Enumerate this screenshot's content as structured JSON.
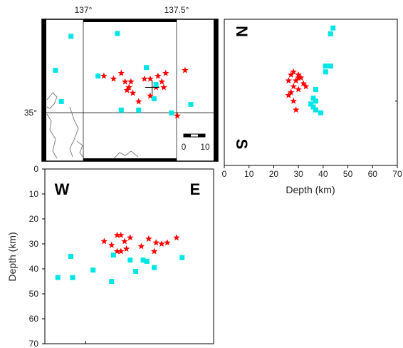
{
  "colors": {
    "event_star": "#ff0000",
    "station_square": "#00e5e5",
    "frame": "#000000",
    "coast": "#808080"
  },
  "chart_data": [
    {
      "type": "scatter",
      "panel": "map",
      "xlim": [
        136.78,
        137.69
      ],
      "ylim": [
        34.78,
        35.28
      ],
      "x_tick_labels": [
        {
          "value": 137.0,
          "label": "137°"
        },
        {
          "value": 137.5,
          "label": "137.5°"
        }
      ],
      "y_tick_labels": [
        {
          "value": 35.0,
          "label": "35°"
        }
      ],
      "scale_bar": {
        "labels": [
          "0",
          "10"
        ],
        "unit": "km"
      },
      "center_cross": {
        "lon": 137.35,
        "lat": 35.04
      },
      "series": [
        {
          "marker": "star",
          "points": [
            {
              "lon": 137.1,
              "lat": 35.08
            },
            {
              "lon": 137.15,
              "lat": 35.07
            },
            {
              "lon": 137.19,
              "lat": 35.09
            },
            {
              "lon": 137.21,
              "lat": 35.06
            },
            {
              "lon": 137.24,
              "lat": 35.06
            },
            {
              "lon": 137.23,
              "lat": 35.04
            },
            {
              "lon": 137.22,
              "lat": 35.03
            },
            {
              "lon": 137.25,
              "lat": 35.02
            },
            {
              "lon": 137.31,
              "lat": 35.07
            },
            {
              "lon": 137.34,
              "lat": 35.07
            },
            {
              "lon": 137.38,
              "lat": 35.08
            },
            {
              "lon": 137.42,
              "lat": 35.09
            },
            {
              "lon": 137.4,
              "lat": 35.06
            },
            {
              "lon": 137.37,
              "lat": 35.04
            },
            {
              "lon": 137.41,
              "lat": 35.04
            },
            {
              "lon": 137.34,
              "lat": 35.01
            },
            {
              "lon": 137.28,
              "lat": 34.99
            },
            {
              "lon": 137.52,
              "lat": 35.1
            },
            {
              "lon": 137.48,
              "lat": 34.94
            }
          ]
        },
        {
          "marker": "square",
          "points": [
            {
              "lon": 136.93,
              "lat": 35.22
            },
            {
              "lon": 137.17,
              "lat": 35.23
            },
            {
              "lon": 136.85,
              "lat": 35.1
            },
            {
              "lon": 137.07,
              "lat": 35.08
            },
            {
              "lon": 137.32,
              "lat": 35.11
            },
            {
              "lon": 137.37,
              "lat": 35.05
            },
            {
              "lon": 137.36,
              "lat": 35.0
            },
            {
              "lon": 136.88,
              "lat": 34.99
            },
            {
              "lon": 137.19,
              "lat": 34.96
            },
            {
              "lon": 137.28,
              "lat": 34.96
            },
            {
              "lon": 137.45,
              "lat": 34.95
            },
            {
              "lon": 137.55,
              "lat": 34.98
            }
          ]
        }
      ]
    },
    {
      "type": "scatter",
      "panel": "north-south cross-section",
      "xlabel": "Depth (km)",
      "xlim": [
        0,
        70
      ],
      "ylim": [
        34.78,
        35.28
      ],
      "x_ticks": [
        0,
        10,
        20,
        30,
        40,
        50,
        60,
        70
      ],
      "top_label": "N",
      "bottom_label": "S",
      "series": [
        {
          "marker": "star",
          "points": [
            {
              "depth": 27,
              "lat": 35.09
            },
            {
              "depth": 28,
              "lat": 35.1
            },
            {
              "depth": 30,
              "lat": 35.09
            },
            {
              "depth": 31,
              "lat": 35.08
            },
            {
              "depth": 29,
              "lat": 35.07
            },
            {
              "depth": 26,
              "lat": 35.07
            },
            {
              "depth": 28,
              "lat": 35.05
            },
            {
              "depth": 30,
              "lat": 35.04
            },
            {
              "depth": 32,
              "lat": 35.06
            },
            {
              "depth": 33,
              "lat": 35.05
            },
            {
              "depth": 27,
              "lat": 35.03
            },
            {
              "depth": 26,
              "lat": 35.02
            },
            {
              "depth": 28,
              "lat": 35.0
            },
            {
              "depth": 29,
              "lat": 34.97
            },
            {
              "depth": 30,
              "lat": 35.08
            }
          ]
        },
        {
          "marker": "square",
          "points": [
            {
              "depth": 44,
              "lat": 35.25
            },
            {
              "depth": 43,
              "lat": 35.23
            },
            {
              "depth": 41,
              "lat": 35.12
            },
            {
              "depth": 43,
              "lat": 35.12
            },
            {
              "depth": 41,
              "lat": 35.1
            },
            {
              "depth": 37,
              "lat": 35.04
            },
            {
              "depth": 36,
              "lat": 35.01
            },
            {
              "depth": 37,
              "lat": 35.0
            },
            {
              "depth": 35,
              "lat": 34.99
            },
            {
              "depth": 36,
              "lat": 34.98
            },
            {
              "depth": 37,
              "lat": 34.97
            },
            {
              "depth": 39,
              "lat": 34.96
            }
          ]
        }
      ]
    },
    {
      "type": "scatter",
      "panel": "east-west cross-section",
      "ylabel": "Depth (km)",
      "xlim": [
        136.78,
        137.69
      ],
      "ylim": [
        0,
        70
      ],
      "y_ticks": [
        0,
        10,
        20,
        30,
        40,
        50,
        60,
        70
      ],
      "left_label": "W",
      "right_label": "E",
      "series": [
        {
          "marker": "star",
          "points": [
            {
              "lon": 137.1,
              "depth": 29
            },
            {
              "lon": 137.14,
              "depth": 30.5
            },
            {
              "lon": 137.17,
              "depth": 26.5
            },
            {
              "lon": 137.19,
              "depth": 26.5
            },
            {
              "lon": 137.21,
              "depth": 29
            },
            {
              "lon": 137.17,
              "depth": 33
            },
            {
              "lon": 137.19,
              "depth": 33
            },
            {
              "lon": 137.24,
              "depth": 27.5
            },
            {
              "lon": 137.3,
              "depth": 31
            },
            {
              "lon": 137.34,
              "depth": 28
            },
            {
              "lon": 137.37,
              "depth": 33
            },
            {
              "lon": 137.38,
              "depth": 29.5
            },
            {
              "lon": 137.41,
              "depth": 30
            },
            {
              "lon": 137.44,
              "depth": 29.5
            },
            {
              "lon": 137.49,
              "depth": 27.5
            },
            {
              "lon": 137.22,
              "depth": 32
            }
          ]
        },
        {
          "marker": "square",
          "points": [
            {
              "lon": 136.85,
              "depth": 43.5
            },
            {
              "lon": 136.92,
              "depth": 35
            },
            {
              "lon": 136.93,
              "depth": 43.5
            },
            {
              "lon": 137.04,
              "depth": 40.5
            },
            {
              "lon": 137.15,
              "depth": 34.5
            },
            {
              "lon": 137.14,
              "depth": 45
            },
            {
              "lon": 137.24,
              "depth": 36.5
            },
            {
              "lon": 137.27,
              "depth": 41
            },
            {
              "lon": 137.31,
              "depth": 36.5
            },
            {
              "lon": 137.33,
              "depth": 37
            },
            {
              "lon": 137.37,
              "depth": 39.5
            },
            {
              "lon": 137.52,
              "depth": 35.5
            }
          ]
        }
      ]
    }
  ]
}
